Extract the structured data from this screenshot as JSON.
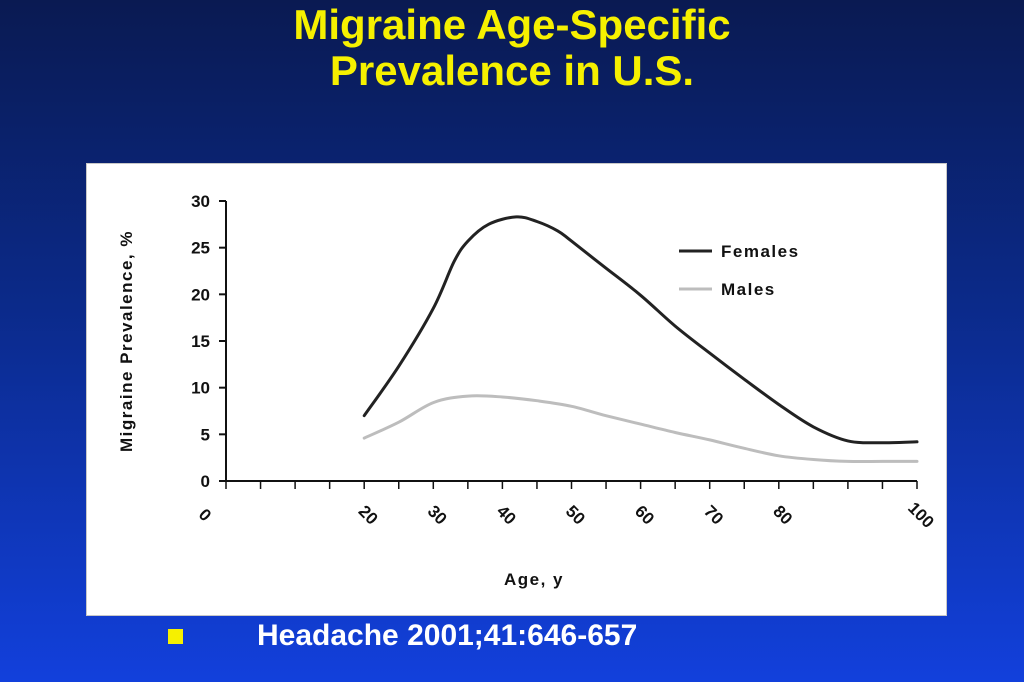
{
  "slide": {
    "title_line1": "Migraine Age-Specific",
    "title_line2": "Prevalence in U.S.",
    "citation": "Headache 2001;41:646-657"
  },
  "colors": {
    "title": "#f6f000",
    "background_top": "#0a1a52",
    "background_bottom": "#1240dc",
    "females_line": "#222222",
    "males_line": "#bdbdbd"
  },
  "chart_data": {
    "type": "line",
    "title": "",
    "xlabel": "Age,  y",
    "ylabel": "Migraine Prevalence, %",
    "xlim": [
      0,
      100
    ],
    "ylim": [
      0,
      30
    ],
    "x_ticks": [
      0,
      20,
      30,
      40,
      50,
      60,
      70,
      80,
      100
    ],
    "y_ticks": [
      0,
      5,
      10,
      15,
      20,
      25,
      30
    ],
    "grid": false,
    "legend_position": "top-right",
    "series": [
      {
        "name": "Females",
        "color": "#222222",
        "x": [
          20,
          25,
          30,
          33,
          35,
          38,
          42,
          45,
          48,
          50,
          55,
          60,
          65,
          70,
          75,
          80,
          85,
          90,
          95,
          100
        ],
        "y": [
          7,
          12.3,
          18.5,
          23.5,
          25.7,
          27.5,
          28.3,
          27.8,
          26.8,
          25.7,
          22.8,
          19.9,
          16.6,
          13.7,
          10.9,
          8.2,
          5.8,
          4.3,
          4.1,
          4.2
        ]
      },
      {
        "name": "Males",
        "color": "#bdbdbd",
        "x": [
          20,
          25,
          30,
          35,
          40,
          45,
          50,
          55,
          60,
          65,
          70,
          75,
          80,
          85,
          90,
          95,
          100
        ],
        "y": [
          4.6,
          6.3,
          8.4,
          9.1,
          9,
          8.6,
          8,
          7,
          6.1,
          5.2,
          4.4,
          3.5,
          2.7,
          2.3,
          2.1,
          2.1,
          2.1
        ]
      }
    ]
  }
}
